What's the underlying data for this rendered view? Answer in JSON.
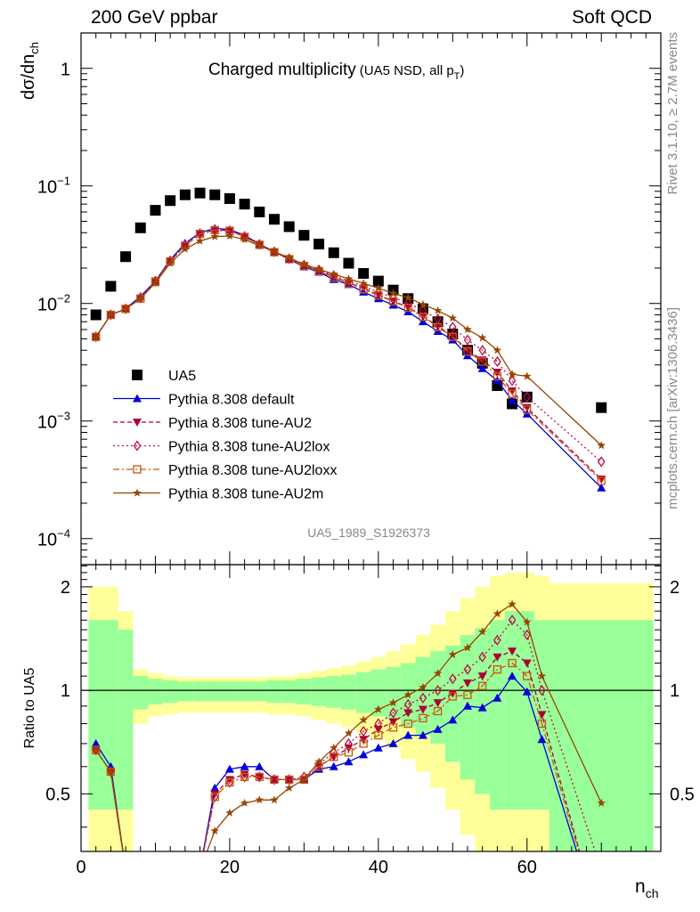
{
  "header": {
    "left": "200 GeV ppbar",
    "right": "Soft QCD"
  },
  "side_labels": {
    "rivet": "Rivet 3.1.10, ≥ 2.7M events",
    "mcplots": "mcplots.cern.ch [arXiv:1306.3436]"
  },
  "analysis_id": "UA5_1989_S1926373",
  "colors": {
    "data": "#000000",
    "default": "#0000dd",
    "au2": "#aa0033",
    "au2lox": "#bb1144",
    "au2loxx": "#cc5511",
    "au2m": "#994400",
    "band_inner": "#99ff99",
    "band_outer": "#ffff99"
  },
  "chart_data": [
    {
      "type": "scatter",
      "title": "Charged multiplicity",
      "title_sub": "(UA5 NSD, all p",
      "title_sub_subscript": "T",
      "title_sub_close": ")",
      "ylabel": "dσ/dn",
      "ylabel_sub": "ch",
      "yscale": "log",
      "xlim": [
        0,
        78
      ],
      "ylim": [
        6e-05,
        2.0
      ],
      "y_ticks": [
        {
          "value": 1,
          "label": "1",
          "exp": ""
        },
        {
          "value": 0.1,
          "label": "10",
          "exp": "−1"
        },
        {
          "value": 0.01,
          "label": "10",
          "exp": "−2"
        },
        {
          "value": 0.001,
          "label": "10",
          "exp": "−3"
        },
        {
          "value": 0.0001,
          "label": "10",
          "exp": "−4"
        }
      ],
      "x": [
        2,
        4,
        6,
        8,
        10,
        12,
        14,
        16,
        18,
        20,
        22,
        24,
        26,
        28,
        30,
        32,
        34,
        36,
        38,
        40,
        42,
        44,
        46,
        48,
        50,
        52,
        54,
        56,
        58,
        60,
        70
      ],
      "series": [
        {
          "name": "UA5",
          "key": "data",
          "marker": "square",
          "line": "none",
          "values": [
            0.008,
            0.014,
            0.025,
            0.044,
            0.062,
            0.075,
            0.084,
            0.087,
            0.084,
            0.078,
            0.07,
            0.06,
            0.052,
            0.045,
            0.038,
            0.032,
            0.027,
            0.022,
            0.018,
            0.0155,
            0.013,
            0.011,
            0.009,
            0.007,
            0.0055,
            0.004,
            0.0031,
            0.002,
            0.0014,
            0.0016,
            0.0013
          ]
        },
        {
          "name": "Pythia 8.308 default",
          "key": "default",
          "marker": "triangle-up",
          "line": "solid",
          "values": [
            0.0052,
            0.008,
            0.009,
            0.0115,
            0.0155,
            0.0235,
            0.0325,
            0.04,
            0.0435,
            0.0425,
            0.038,
            0.032,
            0.0275,
            0.0238,
            0.0205,
            0.0185,
            0.016,
            0.0145,
            0.0125,
            0.011,
            0.0097,
            0.0085,
            0.007,
            0.0058,
            0.0049,
            0.0036,
            0.0028,
            0.0022,
            0.0015,
            0.00115,
            0.00027
          ]
        },
        {
          "name": "Pythia 8.308 tune-AU2",
          "key": "au2",
          "marker": "triangle-down",
          "line": "dashed",
          "values": [
            0.0052,
            0.008,
            0.009,
            0.011,
            0.0155,
            0.023,
            0.031,
            0.0395,
            0.042,
            0.042,
            0.037,
            0.0318,
            0.0275,
            0.0238,
            0.021,
            0.019,
            0.0168,
            0.015,
            0.0135,
            0.0118,
            0.0105,
            0.0093,
            0.0078,
            0.0064,
            0.0053,
            0.004,
            0.0033,
            0.0026,
            0.0018,
            0.0013,
            0.00032
          ]
        },
        {
          "name": "Pythia 8.308 tune-AU2lox",
          "key": "au2lox",
          "marker": "diamond",
          "line": "dotted",
          "values": [
            0.0052,
            0.008,
            0.009,
            0.0112,
            0.0155,
            0.023,
            0.031,
            0.0392,
            0.0415,
            0.0415,
            0.037,
            0.0318,
            0.0275,
            0.024,
            0.0212,
            0.0193,
            0.0172,
            0.0155,
            0.014,
            0.0125,
            0.0112,
            0.0101,
            0.0087,
            0.0074,
            0.0063,
            0.0049,
            0.004,
            0.0032,
            0.0022,
            0.0016,
            0.00045
          ]
        },
        {
          "name": "Pythia 8.308 tune-AU2loxx",
          "key": "au2loxx",
          "marker": "square-open",
          "line": "dashdot",
          "values": [
            0.0052,
            0.008,
            0.009,
            0.011,
            0.0152,
            0.0228,
            0.031,
            0.039,
            0.042,
            0.0415,
            0.0368,
            0.0315,
            0.0273,
            0.0238,
            0.0208,
            0.0188,
            0.0166,
            0.0148,
            0.0132,
            0.0117,
            0.0104,
            0.0092,
            0.0077,
            0.0063,
            0.0052,
            0.0039,
            0.0032,
            0.0024,
            0.0017,
            0.00125,
            0.00031
          ]
        },
        {
          "name": "Pythia 8.308 tune-AU2m",
          "key": "au2m",
          "marker": "star",
          "line": "solid",
          "values": [
            0.0052,
            0.008,
            0.009,
            0.011,
            0.015,
            0.022,
            0.029,
            0.034,
            0.037,
            0.0375,
            0.035,
            0.031,
            0.0275,
            0.0245,
            0.0215,
            0.0195,
            0.0178,
            0.0162,
            0.0148,
            0.0135,
            0.0122,
            0.0112,
            0.0098,
            0.0087,
            0.0075,
            0.006,
            0.0051,
            0.004,
            0.0025,
            0.0024,
            0.00062
          ]
        }
      ]
    },
    {
      "type": "line",
      "ylabel": "Ratio to UA5",
      "xlabel": "n",
      "xlabel_sub": "ch",
      "xlim": [
        0,
        78
      ],
      "ylim": [
        0.34,
        2.32
      ],
      "x_ticks": [
        0,
        20,
        40,
        60
      ],
      "y_ticks": [
        0.5,
        1,
        2
      ],
      "reference": 1,
      "bands": {
        "edges": [
          1,
          3,
          5,
          7,
          9,
          11,
          13,
          15,
          17,
          19,
          21,
          23,
          25,
          27,
          29,
          31,
          33,
          35,
          37,
          39,
          41,
          43,
          45,
          47,
          49,
          51,
          53,
          55,
          57,
          59,
          61,
          63,
          77
        ],
        "inner_lo": [
          0.45,
          0.45,
          0.45,
          0.88,
          0.91,
          0.92,
          0.93,
          0.93,
          0.93,
          0.93,
          0.93,
          0.93,
          0.92,
          0.92,
          0.91,
          0.9,
          0.89,
          0.88,
          0.86,
          0.84,
          0.82,
          0.78,
          0.74,
          0.7,
          0.62,
          0.55,
          0.5,
          0.45,
          0.45,
          0.45,
          0.45,
          0.3
        ],
        "inner_hi": [
          1.6,
          1.6,
          1.5,
          1.1,
          1.08,
          1.07,
          1.06,
          1.06,
          1.06,
          1.06,
          1.06,
          1.06,
          1.07,
          1.07,
          1.08,
          1.09,
          1.1,
          1.11,
          1.13,
          1.15,
          1.17,
          1.2,
          1.25,
          1.3,
          1.35,
          1.45,
          1.52,
          1.6,
          1.7,
          1.7,
          1.6,
          1.6
        ],
        "outer_lo": [
          0.3,
          0.3,
          0.3,
          0.8,
          0.84,
          0.85,
          0.86,
          0.86,
          0.86,
          0.86,
          0.86,
          0.86,
          0.85,
          0.85,
          0.84,
          0.82,
          0.8,
          0.78,
          0.75,
          0.72,
          0.68,
          0.63,
          0.58,
          0.52,
          0.45,
          0.38,
          0.32,
          0.3,
          0.3,
          0.3,
          0.3,
          0.3
        ],
        "outer_hi": [
          2.0,
          2.0,
          1.7,
          1.15,
          1.12,
          1.1,
          1.09,
          1.09,
          1.09,
          1.09,
          1.09,
          1.09,
          1.1,
          1.1,
          1.12,
          1.14,
          1.16,
          1.18,
          1.21,
          1.25,
          1.3,
          1.36,
          1.45,
          1.55,
          1.7,
          1.85,
          2.0,
          2.15,
          2.2,
          2.2,
          2.15,
          2.05
        ]
      },
      "series": [
        {
          "name": "Pythia 8.308 default",
          "key": "default",
          "marker": "triangle-up",
          "line": "solid",
          "x": [
            2,
            4,
            6,
            16,
            18,
            20,
            22,
            24,
            26,
            28,
            30,
            32,
            34,
            36,
            38,
            40,
            42,
            44,
            46,
            48,
            50,
            52,
            54,
            56,
            58,
            60,
            62,
            70
          ],
          "values": [
            0.7,
            0.6,
            0.3,
            0.3,
            0.52,
            0.59,
            0.6,
            0.6,
            0.55,
            0.55,
            0.55,
            0.59,
            0.6,
            0.62,
            0.65,
            0.68,
            0.7,
            0.74,
            0.74,
            0.77,
            0.82,
            0.9,
            0.89,
            0.95,
            1.1,
            0.99,
            0.72,
            0.2
          ]
        },
        {
          "name": "Pythia 8.308 tune-AU2",
          "key": "au2",
          "marker": "triangle-down",
          "line": "dashed",
          "x": [
            2,
            4,
            6,
            16,
            18,
            20,
            22,
            24,
            26,
            28,
            30,
            32,
            34,
            36,
            38,
            40,
            42,
            44,
            46,
            48,
            50,
            52,
            54,
            56,
            58,
            60,
            62,
            70
          ],
          "values": [
            0.67,
            0.58,
            0.3,
            0.3,
            0.5,
            0.55,
            0.57,
            0.56,
            0.55,
            0.55,
            0.55,
            0.6,
            0.64,
            0.68,
            0.72,
            0.77,
            0.81,
            0.86,
            0.88,
            0.92,
            0.98,
            1.05,
            1.1,
            1.25,
            1.3,
            1.2,
            0.85,
            0.2
          ]
        },
        {
          "name": "Pythia 8.308 tune-AU2lox",
          "key": "au2lox",
          "marker": "diamond",
          "line": "dotted",
          "x": [
            2,
            4,
            6,
            16,
            18,
            20,
            22,
            24,
            26,
            28,
            30,
            32,
            34,
            36,
            38,
            40,
            42,
            44,
            46,
            48,
            50,
            52,
            54,
            56,
            58,
            60,
            62,
            70
          ],
          "values": [
            0.67,
            0.58,
            0.3,
            0.3,
            0.49,
            0.54,
            0.56,
            0.56,
            0.55,
            0.55,
            0.56,
            0.61,
            0.66,
            0.7,
            0.76,
            0.8,
            0.86,
            0.91,
            0.95,
            1.0,
            1.08,
            1.15,
            1.25,
            1.4,
            1.6,
            1.45,
            1.0,
            0.3
          ]
        },
        {
          "name": "Pythia 8.308 tune-AU2loxx",
          "key": "au2loxx",
          "marker": "square-open",
          "line": "dashdot",
          "x": [
            2,
            4,
            6,
            16,
            18,
            20,
            22,
            24,
            26,
            28,
            30,
            32,
            34,
            36,
            38,
            40,
            42,
            44,
            46,
            48,
            50,
            52,
            54,
            56,
            58,
            60,
            62,
            70
          ],
          "values": [
            0.67,
            0.58,
            0.3,
            0.3,
            0.49,
            0.54,
            0.56,
            0.56,
            0.55,
            0.55,
            0.55,
            0.6,
            0.64,
            0.66,
            0.7,
            0.74,
            0.78,
            0.8,
            0.83,
            0.87,
            0.96,
            0.97,
            1.03,
            1.15,
            1.2,
            1.1,
            0.8,
            0.2
          ]
        },
        {
          "name": "Pythia 8.308 tune-AU2m",
          "key": "au2m",
          "marker": "star",
          "line": "solid",
          "x": [
            2,
            4,
            6,
            16,
            18,
            20,
            22,
            24,
            26,
            28,
            30,
            32,
            34,
            36,
            38,
            40,
            42,
            44,
            46,
            48,
            50,
            52,
            54,
            56,
            58,
            60,
            62,
            70
          ],
          "values": [
            0.67,
            0.58,
            0.3,
            0.3,
            0.39,
            0.44,
            0.47,
            0.48,
            0.48,
            0.52,
            0.55,
            0.62,
            0.68,
            0.75,
            0.82,
            0.88,
            0.92,
            0.97,
            1.02,
            1.12,
            1.27,
            1.33,
            1.48,
            1.67,
            1.78,
            1.58,
            1.1,
            0.47
          ]
        }
      ]
    }
  ]
}
